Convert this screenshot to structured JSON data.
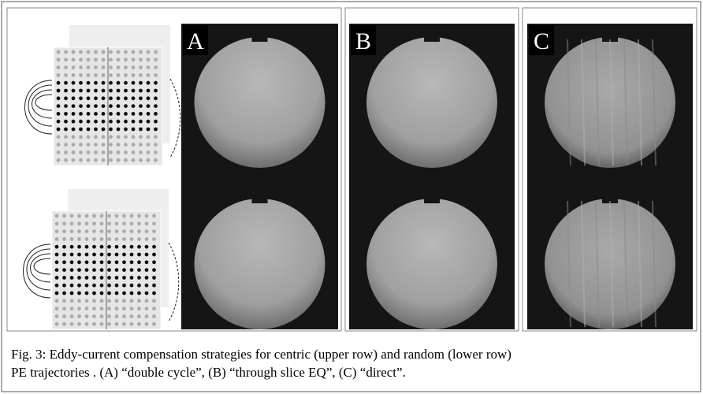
{
  "figure": {
    "panels": [
      {
        "label": "A"
      },
      {
        "label": "B"
      },
      {
        "label": "C"
      }
    ],
    "caption": {
      "lines": [
        "Fig. 3: Eddy-current compensation strategies for centric (upper row) and random (lower row)",
        "PE trajectories . (A) “double cycle”, (B) “through slice EQ”, (C) “direct”."
      ]
    }
  }
}
